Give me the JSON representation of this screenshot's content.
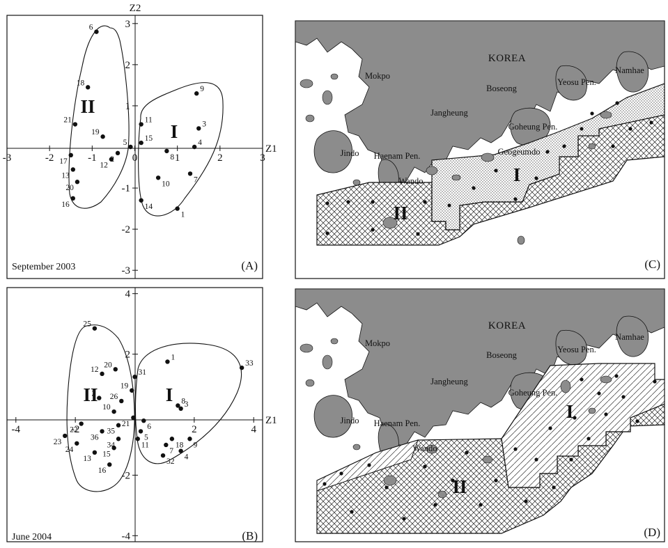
{
  "colors": {
    "land": "#8c8c8c",
    "ink": "#111111",
    "paper": "#ffffff"
  },
  "chart_data": [
    {
      "type": "scatter",
      "panel": "(A)",
      "date": "September 2003",
      "xlabel": "Z1",
      "ylabel": "Z2",
      "xlim": [
        -3,
        3
      ],
      "ylim": [
        -3.2,
        3.2
      ],
      "xticks": [
        "-3",
        "-2",
        "-1",
        "0",
        "1",
        "2",
        "3"
      ],
      "yticks": [
        "-3",
        "-2",
        "-1",
        "1",
        "2",
        "3"
      ],
      "group_labels": [
        "I",
        "II"
      ],
      "points": [
        {
          "id": "1",
          "x": 1.0,
          "y": -1.5
        },
        {
          "id": "2",
          "x": -0.4,
          "y": -0.15
        },
        {
          "id": "3",
          "x": 1.5,
          "y": 0.45
        },
        {
          "id": "4",
          "x": 1.4,
          "y": 0.0
        },
        {
          "id": "5",
          "x": -0.1,
          "y": 0.0
        },
        {
          "id": "6",
          "x": -0.9,
          "y": 2.8
        },
        {
          "id": "7",
          "x": 1.3,
          "y": -0.65
        },
        {
          "id": "8",
          "x": 0.75,
          "y": -0.1
        },
        {
          "id": "9",
          "x": 1.45,
          "y": 1.3
        },
        {
          "id": "10",
          "x": 0.55,
          "y": -0.75
        },
        {
          "id": "11",
          "x": 0.15,
          "y": 0.55
        },
        {
          "id": "12",
          "x": -0.55,
          "y": -0.3
        },
        {
          "id": "13",
          "x": -1.45,
          "y": -0.55
        },
        {
          "id": "14",
          "x": 0.15,
          "y": -1.3
        },
        {
          "id": "15",
          "x": 0.15,
          "y": 0.1
        },
        {
          "id": "16",
          "x": -1.45,
          "y": -1.25
        },
        {
          "id": "17",
          "x": -1.5,
          "y": -0.2
        },
        {
          "id": "18",
          "x": -1.1,
          "y": 1.45
        },
        {
          "id": "19",
          "x": -0.75,
          "y": 0.25
        },
        {
          "id": "20",
          "x": -1.35,
          "y": -0.85
        },
        {
          "id": "21",
          "x": -1.4,
          "y": 0.55
        }
      ]
    },
    {
      "type": "scatter",
      "panel": "(B)",
      "date": "June 2004",
      "xlabel": "Z1",
      "ylabel": "",
      "xlim": [
        -4.3,
        4.3
      ],
      "ylim": [
        -4.2,
        4.2
      ],
      "xticks": [
        "-4",
        "-2",
        "2",
        "4"
      ],
      "yticks": [
        "-4",
        "-2",
        "2",
        "4"
      ],
      "group_labels": [
        "I",
        "II"
      ],
      "points": [
        {
          "id": "1",
          "x": 1.1,
          "y": 1.75
        },
        {
          "id": "2",
          "x": -1.2,
          "y": 0.55
        },
        {
          "id": "3",
          "x": 1.55,
          "y": 0.2
        },
        {
          "id": "4",
          "x": 1.55,
          "y": -1.2
        },
        {
          "id": "5",
          "x": 0.2,
          "y": -0.55
        },
        {
          "id": "6",
          "x": 0.3,
          "y": -0.2
        },
        {
          "id": "7",
          "x": 1.05,
          "y": -1.0
        },
        {
          "id": "8",
          "x": 1.45,
          "y": 0.3
        },
        {
          "id": "9",
          "x": 1.85,
          "y": -0.8
        },
        {
          "id": "10",
          "x": -0.7,
          "y": 0.1
        },
        {
          "id": "11",
          "x": 0.1,
          "y": -0.8
        },
        {
          "id": "12",
          "x": -1.1,
          "y": 1.35
        },
        {
          "id": "13",
          "x": -1.35,
          "y": -1.25
        },
        {
          "id": "15",
          "x": -0.7,
          "y": -1.1
        },
        {
          "id": "16",
          "x": -0.85,
          "y": -1.65
        },
        {
          "id": "18",
          "x": 1.25,
          "y": -0.8
        },
        {
          "id": "19",
          "x": -0.1,
          "y": 0.8
        },
        {
          "id": "20",
          "x": -0.65,
          "y": 1.5
        },
        {
          "id": "21",
          "x": -0.05,
          "y": -0.1
        },
        {
          "id": "22",
          "x": -1.8,
          "y": -0.3
        },
        {
          "id": "23",
          "x": -2.35,
          "y": -0.7
        },
        {
          "id": "24",
          "x": -1.95,
          "y": -0.95
        },
        {
          "id": "25",
          "x": -1.35,
          "y": 2.85
        },
        {
          "id": "26",
          "x": -0.45,
          "y": 0.45
        },
        {
          "id": "31",
          "x": 0.0,
          "y": 1.25
        },
        {
          "id": "32",
          "x": 0.95,
          "y": -1.35
        },
        {
          "id": "33",
          "x": 3.6,
          "y": 1.55
        },
        {
          "id": "34",
          "x": -0.55,
          "y": -0.8
        },
        {
          "id": "35",
          "x": -0.55,
          "y": -0.35
        },
        {
          "id": "36",
          "x": -1.1,
          "y": -0.55
        }
      ]
    }
  ],
  "maps": [
    {
      "panel": "(C)",
      "country": "KOREA",
      "places": [
        "Mokpo",
        "Boseong",
        "Yeosu Pen.",
        "Namhae",
        "Jangheung",
        "Goheung Pen.",
        "Geogeumdo",
        "Jindo",
        "Haenam Pen.",
        "Wando"
      ],
      "zones": [
        "I",
        "II"
      ]
    },
    {
      "panel": "(D)",
      "country": "KOREA",
      "places": [
        "Mokpo",
        "Boseong",
        "Yeosu Pen.",
        "Namhae",
        "Jangheung",
        "Goheung Pen.",
        "Jindo",
        "Haenam Pen.",
        "Wando"
      ],
      "zones": [
        "I",
        "II"
      ]
    }
  ]
}
